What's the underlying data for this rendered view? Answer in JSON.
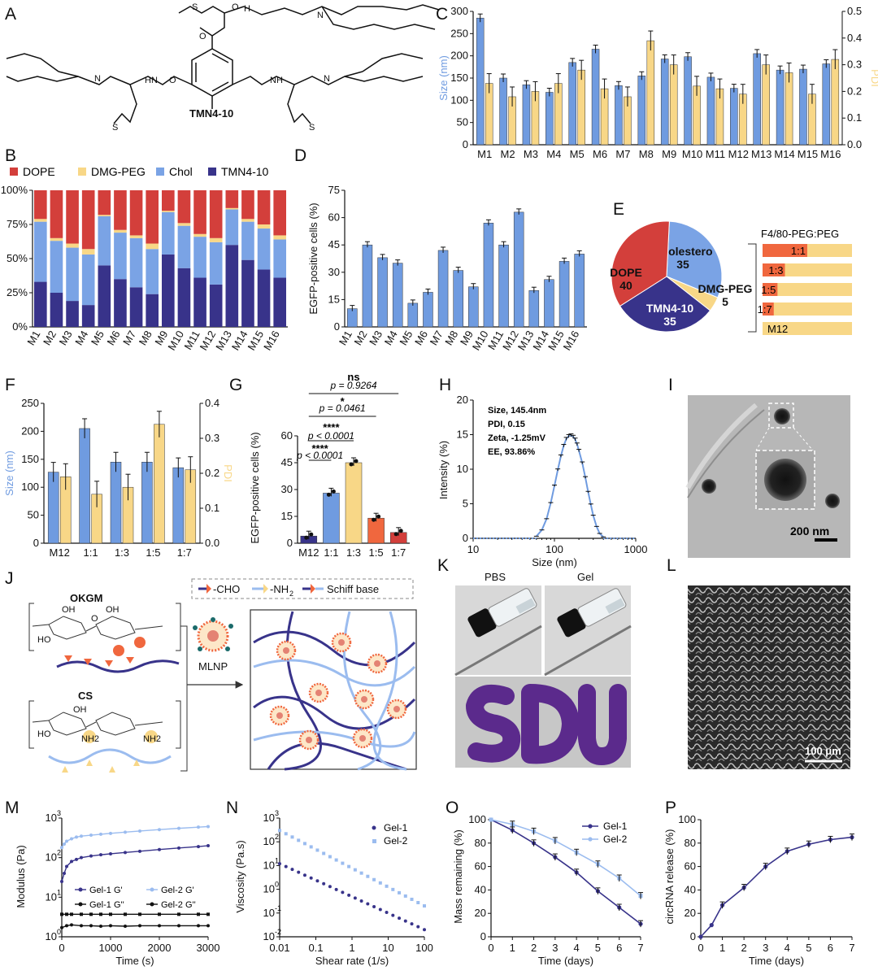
{
  "panel_labels": [
    "A",
    "B",
    "C",
    "D",
    "E",
    "F",
    "G",
    "H",
    "I",
    "J",
    "K",
    "L",
    "M",
    "N",
    "O",
    "P"
  ],
  "panel_a": {
    "compound_name": "TMN4-10",
    "atom_labels": {
      "s": "S",
      "n": "N",
      "nh": "NH",
      "hn": "HN",
      "h": "H",
      "o": "O"
    }
  },
  "colors": {
    "blue": "#6f9be0",
    "yellow": "#f8d787",
    "dope": "#d33f3b",
    "chol": "#7aa3e5",
    "tmn": "#38338a",
    "orange": "#f0673e",
    "red": "#d33f3b",
    "light": "#9bbcef"
  },
  "panel_e": {
    "slices": [
      {
        "label": "Cholestero",
        "value_text": "35",
        "value": 35,
        "color": "#7aa3e5"
      },
      {
        "label": "DMG-PEG",
        "value_text": "5",
        "value": 5,
        "color": "#f8d787"
      },
      {
        "label": "TMN4-10",
        "value_text": "35",
        "value": 35,
        "color": "#38338a"
      },
      {
        "label": "DOPE",
        "value_text": "40",
        "value": 40,
        "color": "#d33f3b"
      }
    ],
    "ratio_title": "F4/80-PEG:PEG",
    "ratio_bars": [
      {
        "label": "1:1",
        "fraction": 0.5
      },
      {
        "label": "1:3",
        "fraction": 0.25
      },
      {
        "label": "1:5",
        "fraction": 0.167
      },
      {
        "label": "1:7",
        "fraction": 0.125
      },
      {
        "label": "M12",
        "fraction": 0
      }
    ]
  },
  "panel_h": {
    "size": "Size,  145.4nm",
    "pdi": "PDI,  0.15",
    "zeta": "Zeta,  -1.25mV",
    "ee": "EE,  93.86%"
  },
  "panel_i": {
    "scale_bar": "200 nm"
  },
  "panel_j": {
    "okgm": "OKGM",
    "cs": "CS",
    "legend_cho": "-CHO",
    "legend_nh2_prefix": "-NH",
    "legend_nh2_sub": "2",
    "legend_schiff": "Schiff base",
    "mlnp": "MLNP",
    "oh": "OH",
    "ho": "HO",
    "o": "O",
    "nh2": "NH2"
  },
  "panel_k": {
    "pbs": "PBS",
    "gel": "Gel"
  },
  "panel_l": {
    "scale_bar": "100 μm"
  },
  "chart_data": [
    {
      "id": "C",
      "type": "bar",
      "categories": [
        "M1",
        "M2",
        "M3",
        "M4",
        "M5",
        "M6",
        "M7",
        "M8",
        "M9",
        "M10",
        "M11",
        "M12",
        "M13",
        "M14",
        "M15",
        "M16"
      ],
      "series": [
        {
          "name": "Size",
          "values": [
            285,
            150,
            135,
            118,
            185,
            215,
            133,
            155,
            193,
            198,
            152,
            127,
            205,
            168,
            170,
            182
          ]
        },
        {
          "name": "PDI",
          "values": [
            0.23,
            0.18,
            0.2,
            0.23,
            0.28,
            0.21,
            0.18,
            0.39,
            0.3,
            0.22,
            0.21,
            0.19,
            0.3,
            0.27,
            0.19,
            0.32
          ]
        }
      ],
      "ylabel": "Size (nm)",
      "y2label": "PDI",
      "ylim": [
        0,
        300
      ],
      "y2lim": [
        0,
        0.5
      ],
      "yticks": [
        "0",
        "50",
        "100",
        "150",
        "200",
        "250",
        "300"
      ],
      "y2ticks": [
        "0.0",
        "0.1",
        "0.2",
        "0.3",
        "0.4",
        "0.5"
      ]
    },
    {
      "id": "B",
      "type": "bar",
      "stacked": true,
      "categories": [
        "M1",
        "M2",
        "M3",
        "M4",
        "M5",
        "M6",
        "M7",
        "M8",
        "M9",
        "M10",
        "M11",
        "M12",
        "M13",
        "M14",
        "M15",
        "M16"
      ],
      "legend": [
        "DOPE",
        "DMG-PEG",
        "Chol",
        "TMN4-10"
      ],
      "series": [
        {
          "name": "TMN4-10",
          "values": [
            33,
            25,
            19,
            16,
            45,
            35,
            29,
            24,
            53,
            43,
            36,
            31,
            60,
            49,
            42,
            36
          ]
        },
        {
          "name": "Chol",
          "values": [
            44,
            38,
            39,
            37,
            36,
            34,
            36,
            33,
            31,
            31,
            30,
            31,
            26,
            28,
            30,
            28
          ]
        },
        {
          "name": "DMG-PEG",
          "values": [
            2,
            2,
            3,
            4,
            1,
            2,
            2,
            4,
            1,
            2,
            2,
            3,
            1,
            2,
            3,
            3
          ]
        },
        {
          "name": "DOPE",
          "values": [
            21,
            35,
            39,
            43,
            18,
            29,
            33,
            39,
            15,
            24,
            32,
            35,
            13,
            21,
            25,
            33
          ]
        }
      ],
      "ylim": [
        0,
        100
      ],
      "yticks": [
        "0%",
        "25%",
        "50%",
        "75%",
        "100%"
      ]
    },
    {
      "id": "D",
      "type": "bar",
      "categories": [
        "M1",
        "M2",
        "M3",
        "M4",
        "M5",
        "M6",
        "M7",
        "M8",
        "M9",
        "M10",
        "M11",
        "M12",
        "M13",
        "M14",
        "M15",
        "M16"
      ],
      "values": [
        10,
        45,
        38,
        35,
        13,
        19,
        42,
        31,
        22,
        57,
        45,
        63,
        20,
        26,
        36,
        40
      ],
      "ylabel": "EGFP-positive cells (%)",
      "ylim": [
        0,
        75
      ],
      "yticks": [
        "0",
        "15",
        "30",
        "45",
        "60",
        "75"
      ]
    },
    {
      "id": "F",
      "type": "bar",
      "categories": [
        "M12",
        "1:1",
        "1:3",
        "1:5",
        "1:7"
      ],
      "series": [
        {
          "name": "Size",
          "values": [
            127,
            205,
            145,
            145,
            135
          ]
        },
        {
          "name": "PDI",
          "values": [
            0.19,
            0.14,
            0.16,
            0.34,
            0.21
          ]
        }
      ],
      "ylabel": "Size (nm)",
      "y2label": "PDI",
      "ylim": [
        0,
        250
      ],
      "y2lim": [
        0,
        0.4
      ],
      "yticks": [
        "0",
        "50",
        "100",
        "150",
        "200",
        "250"
      ],
      "y2ticks": [
        "0.0",
        "0.1",
        "0.2",
        "0.3",
        "0.4"
      ]
    },
    {
      "id": "G",
      "type": "bar",
      "categories": [
        "M12",
        "1:1",
        "1:3",
        "1:5",
        "1:7"
      ],
      "values": [
        4,
        28,
        45,
        14,
        6
      ],
      "ylabel": "EGFP-positive cells (%)",
      "ylim": [
        0,
        60
      ],
      "yticks": [
        "0",
        "15",
        "30",
        "45",
        "60"
      ],
      "annotations": [
        {
          "label": "****",
          "p": "p < 0.0001",
          "from": "M12",
          "to": "1:1"
        },
        {
          "label": "****",
          "p": "p < 0.0001",
          "from": "M12",
          "to": "1:3"
        },
        {
          "label": "*",
          "p": "p = 0.0461",
          "from": "M12",
          "to": "1:5"
        },
        {
          "label": "ns",
          "p": "p = 0.9264",
          "from": "M12",
          "to": "1:7"
        }
      ]
    },
    {
      "id": "H",
      "type": "line",
      "xscale": "log",
      "xlabel": "Size (nm)",
      "ylabel": "Intensity (%)",
      "x": [
        60,
        70,
        80,
        90,
        100,
        110,
        120,
        130,
        140,
        150,
        160,
        170,
        180,
        190,
        200,
        220,
        240,
        260,
        280,
        300,
        330,
        360,
        400
      ],
      "y": [
        0.3,
        1.2,
        2.8,
        5.1,
        7.6,
        9.9,
        11.9,
        13.4,
        14.4,
        14.8,
        14.9,
        14.7,
        14.3,
        13.6,
        12.7,
        10.9,
        8.8,
        6.7,
        4.9,
        3.3,
        1.7,
        0.7,
        0.2
      ],
      "xticks": [
        "10",
        "100",
        "1000"
      ],
      "yticks": [
        "0",
        "5",
        "10",
        "15",
        "20"
      ],
      "ylim": [
        0,
        20
      ]
    },
    {
      "id": "M",
      "type": "line",
      "xlabel": "Time (s)",
      "ylabel": "Modulus (Pa)",
      "yscale": "log",
      "xticks": [
        "0",
        "1000",
        "2000",
        "3000"
      ],
      "yticks": [
        "10",
        "10",
        "10",
        "10"
      ],
      "ytick_exponents": [
        "0",
        "1",
        "2",
        "3"
      ],
      "legend": [
        "Gel-1 G'",
        "Gel-2 G'",
        "Gel-1 G''",
        "Gel-2 G''"
      ],
      "series": [
        {
          "name": "Gel-1 G'",
          "x": [
            0,
            50,
            100,
            200,
            300,
            400,
            600,
            800,
            1000,
            1300,
            1600,
            2000,
            2400,
            2800,
            3000
          ],
          "y": [
            25,
            40,
            60,
            80,
            90,
            100,
            110,
            118,
            125,
            135,
            145,
            160,
            175,
            190,
            200
          ]
        },
        {
          "name": "Gel-2 G'",
          "x": [
            0,
            50,
            100,
            200,
            300,
            400,
            600,
            800,
            1000,
            1300,
            1600,
            2000,
            2400,
            2800,
            3000
          ],
          "y": [
            180,
            220,
            260,
            300,
            330,
            350,
            370,
            390,
            410,
            440,
            470,
            510,
            550,
            590,
            610
          ]
        },
        {
          "name": "Gel-1 G''",
          "x": [
            0,
            100,
            200,
            400,
            600,
            800,
            1000,
            1300,
            1600,
            2000,
            2400,
            2800,
            3000
          ],
          "y": [
            1.7,
            1.9,
            2.0,
            1.9,
            1.9,
            1.85,
            1.9,
            1.85,
            1.9,
            1.9,
            1.9,
            1.9,
            1.9
          ]
        },
        {
          "name": "Gel-2 G''",
          "x": [
            0,
            100,
            200,
            400,
            600,
            800,
            1000,
            1300,
            1600,
            2000,
            2400,
            2800,
            3000
          ],
          "y": [
            3.7,
            3.7,
            3.7,
            3.7,
            3.7,
            3.7,
            3.7,
            3.7,
            3.7,
            3.7,
            3.7,
            3.7,
            3.7
          ]
        }
      ]
    },
    {
      "id": "N",
      "type": "scatter",
      "xscale": "log",
      "yscale": "log",
      "xlabel": "Shear rate (1/s)",
      "ylabel": "Viscosity (Pa.s)",
      "xticks": [
        "0.01",
        "0.1",
        "1",
        "10",
        "100"
      ],
      "yticks": [
        "10",
        "10",
        "10",
        "10",
        "10",
        "10"
      ],
      "ytick_exponents": [
        "-2",
        "-1",
        "0",
        "1",
        "2",
        "3"
      ],
      "legend": [
        "Gel-1",
        "Gel-2"
      ],
      "series": [
        {
          "name": "Gel-1",
          "start": [
            0.01,
            12
          ],
          "end": [
            100,
            0.02
          ]
        },
        {
          "name": "Gel-2",
          "start": [
            0.01,
            300
          ],
          "end": [
            100,
            0.2
          ]
        }
      ]
    },
    {
      "id": "O",
      "type": "line",
      "xlabel": "Time (days)",
      "ylabel": "Mass remaining (%)",
      "xticks": [
        "0",
        "1",
        "2",
        "3",
        "4",
        "5",
        "6",
        "7"
      ],
      "yticks": [
        "0",
        "20",
        "40",
        "60",
        "80",
        "100"
      ],
      "ylim": [
        0,
        100
      ],
      "legend": [
        "Gel-1",
        "Gel-2"
      ],
      "series": [
        {
          "name": "Gel-1",
          "x": [
            0,
            1,
            2,
            3,
            4,
            5,
            6,
            7
          ],
          "y": [
            100,
            91,
            80,
            68,
            55,
            39,
            25,
            11
          ]
        },
        {
          "name": "Gel-2",
          "x": [
            0,
            1,
            2,
            3,
            4,
            5,
            6,
            7
          ],
          "y": [
            100,
            96,
            90,
            82,
            72,
            62,
            50,
            35
          ]
        }
      ]
    },
    {
      "id": "P",
      "type": "line",
      "xlabel": "Time (days)",
      "ylabel": "circRNA release (%)",
      "xticks": [
        "0",
        "1",
        "2",
        "3",
        "4",
        "5",
        "6",
        "7"
      ],
      "yticks": [
        "0",
        "20",
        "40",
        "60",
        "80",
        "100"
      ],
      "ylim": [
        0,
        100
      ],
      "series": [
        {
          "name": "release",
          "x": [
            0,
            0.5,
            1,
            2,
            3,
            4,
            5,
            6,
            7
          ],
          "y": [
            0,
            10,
            27,
            42,
            60,
            73,
            79,
            83,
            85
          ]
        }
      ]
    }
  ]
}
